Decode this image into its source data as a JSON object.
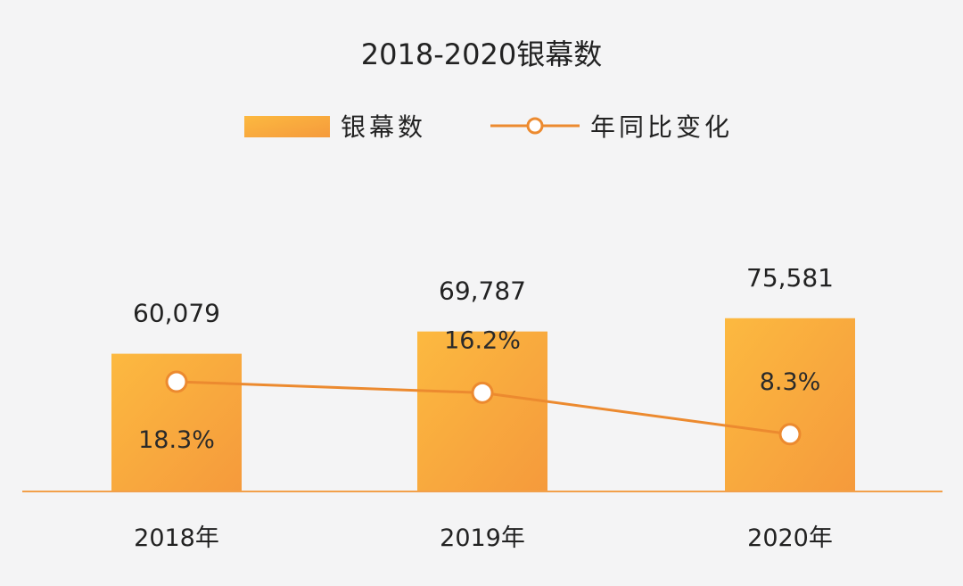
{
  "chart_data": {
    "type": "bar",
    "title": "2018-2020银幕数",
    "categories": [
      "2018年",
      "2019年",
      "2020年"
    ],
    "series": [
      {
        "name": "银幕数",
        "kind": "bar",
        "values": [
          60079,
          69787,
          75581
        ],
        "labels": [
          "60,079",
          "69,787",
          "75,581"
        ]
      },
      {
        "name": "年同比变化",
        "kind": "line",
        "values": [
          18.3,
          16.2,
          8.3
        ],
        "labels": [
          "18.3%",
          "16.2%",
          "8.3%"
        ]
      }
    ],
    "legend_position": "top-center",
    "grid": false
  },
  "colors": {
    "bar_light": "#fcb940",
    "bar_dark": "#f59a3c",
    "line": "#ec8a2f",
    "axis": "#f2a04a"
  }
}
